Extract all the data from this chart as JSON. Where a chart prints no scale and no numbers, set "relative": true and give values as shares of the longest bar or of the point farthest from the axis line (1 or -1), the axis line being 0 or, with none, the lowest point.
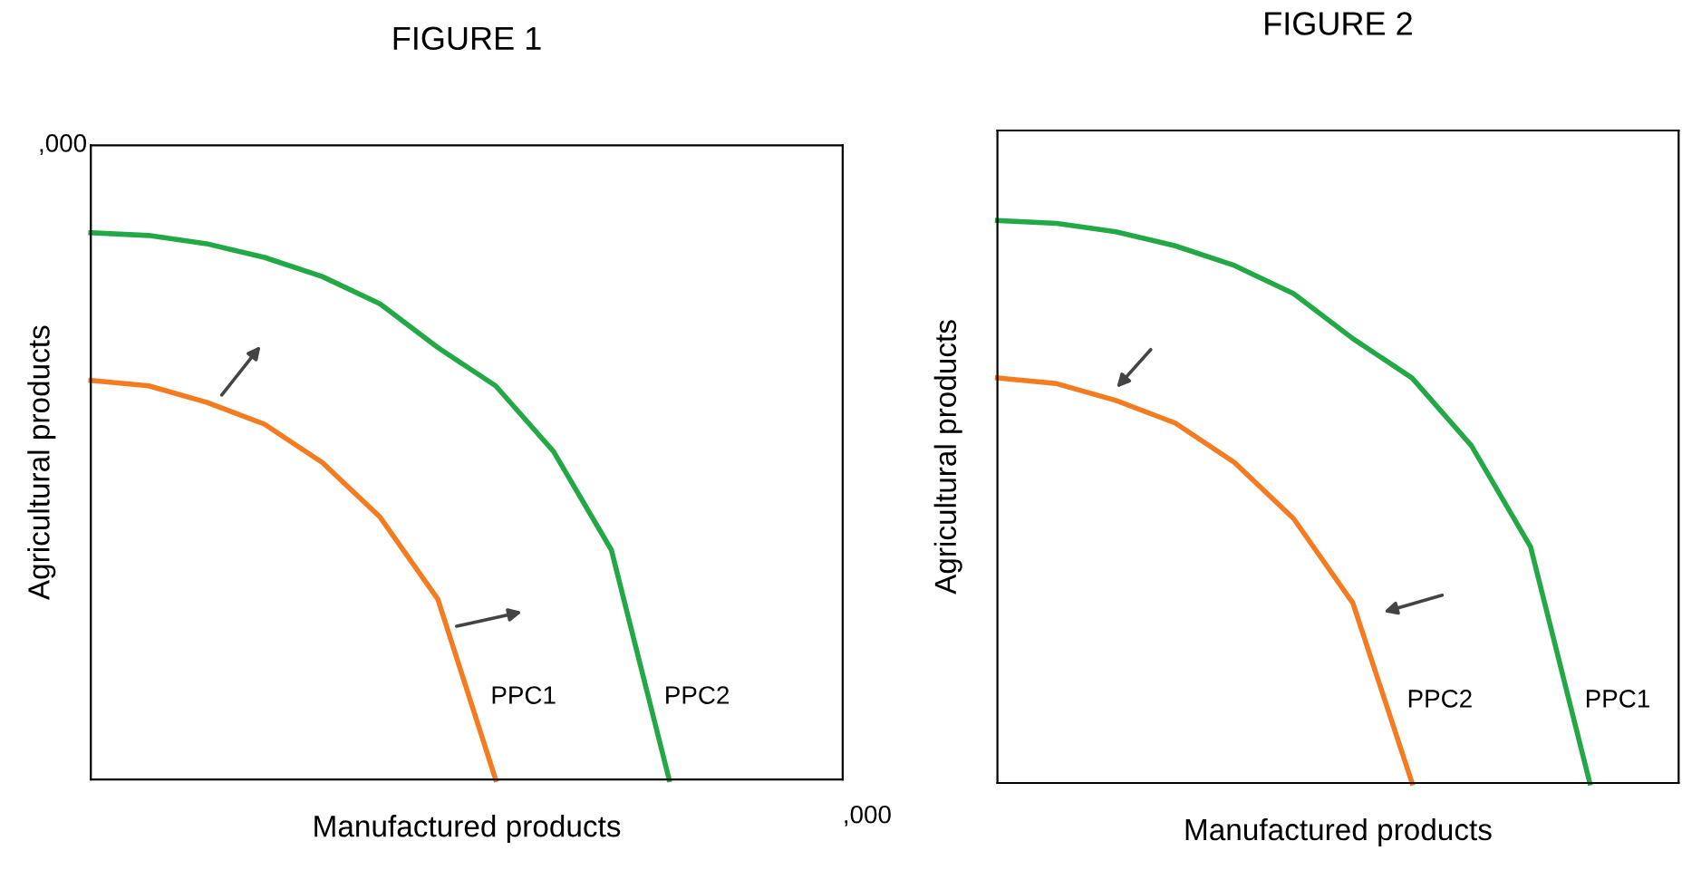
{
  "chart_data": [
    {
      "type": "line",
      "title": "FIGURE 1",
      "xlabel": "Manufactured products",
      "ylabel": "Agricultural products",
      "relative": true,
      "tick_labels": false,
      "annotations": [
        ",000",
        ",000"
      ],
      "categories": [
        null,
        null,
        null,
        null,
        null,
        null,
        null,
        null,
        null,
        null,
        null
      ],
      "series": [
        {
          "name": "PPC1",
          "color": "#f47b20",
          "values": [
            0.73,
            0.72,
            0.69,
            0.65,
            0.58,
            0.48,
            0.33,
            0,
            null,
            null,
            null
          ]
        },
        {
          "name": "PPC2",
          "color": "#22a845",
          "values": [
            1,
            0.995,
            0.98,
            0.955,
            0.92,
            0.87,
            0.79,
            0.72,
            0.6,
            0.42,
            0
          ]
        }
      ]
    },
    {
      "type": "line",
      "title": "FIGURE 2",
      "xlabel": "Manufactured products",
      "ylabel": "Agricultural products",
      "relative": true,
      "tick_labels": false,
      "categories": [
        null,
        null,
        null,
        null,
        null,
        null,
        null,
        null,
        null,
        null,
        null
      ],
      "series": [
        {
          "name": "PPC2",
          "color": "#f47b20",
          "values": [
            0.72,
            0.71,
            0.68,
            0.64,
            0.57,
            0.47,
            0.32,
            0,
            null,
            null,
            null
          ]
        },
        {
          "name": "PPC1",
          "color": "#22a845",
          "values": [
            1,
            0.995,
            0.98,
            0.955,
            0.92,
            0.87,
            0.79,
            0.72,
            0.6,
            0.42,
            0
          ]
        }
      ]
    }
  ]
}
